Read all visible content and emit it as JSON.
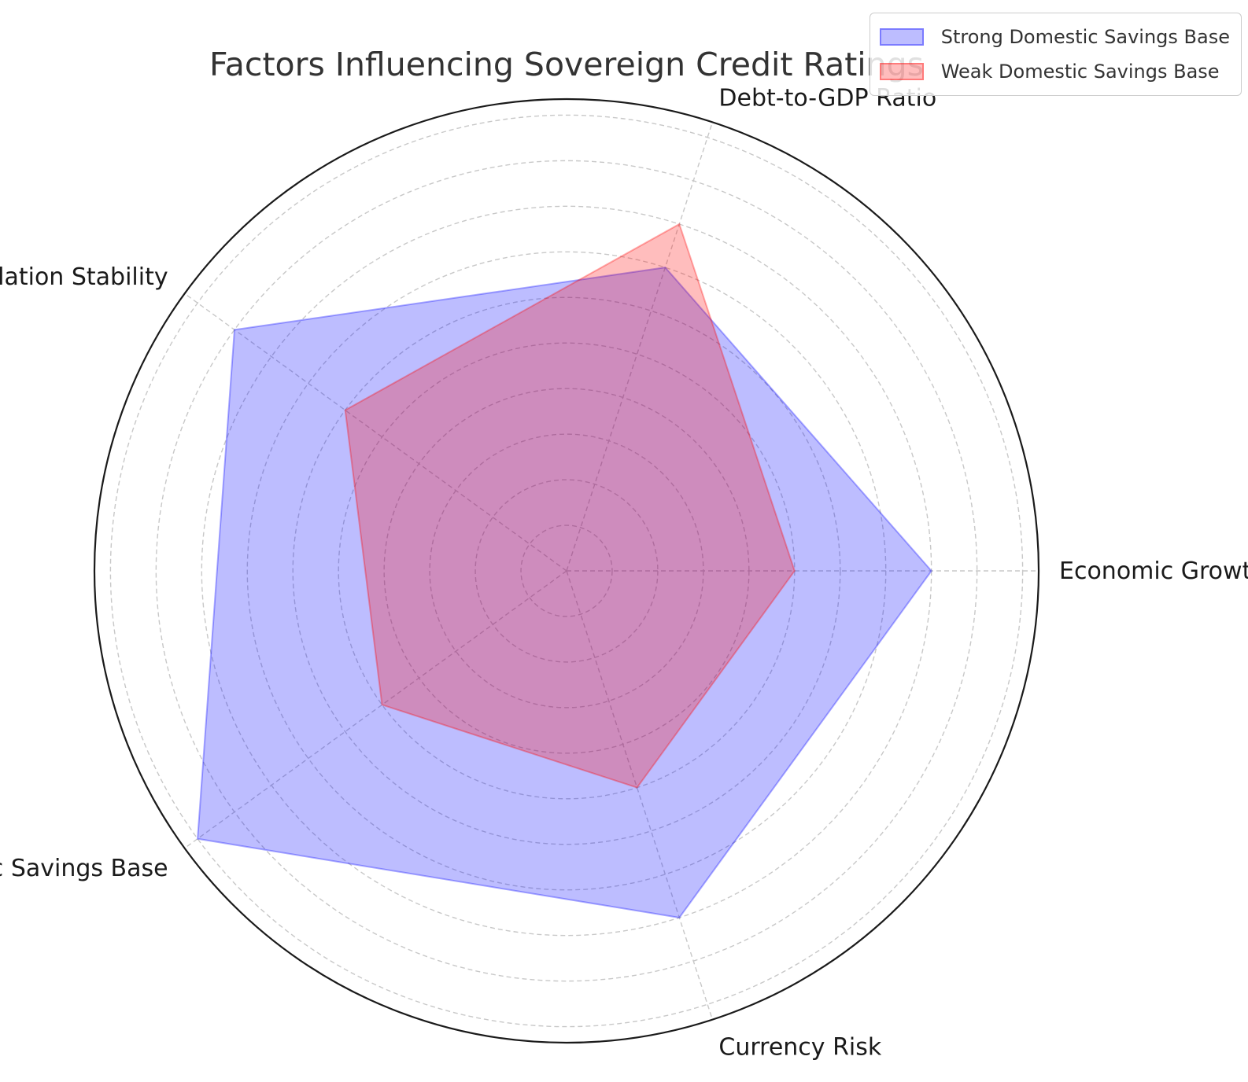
{
  "chart_data": {
    "type": "radar",
    "title": "Factors Influencing Sovereign Credit Ratings",
    "categories": [
      "Economic Growth",
      "Debt-to-GDP Ratio",
      "Inflation Stability",
      "Domestic Savings Base",
      "Currency Risk"
    ],
    "rlim": [
      0,
      10
    ],
    "ring_count": 10,
    "tick_labels_shown": false,
    "grid": true,
    "legend_position": "top-right",
    "series": [
      {
        "name": "Strong Domestic Savings Base",
        "values": [
          8,
          7,
          9,
          10,
          8
        ],
        "color": "#0000ff"
      },
      {
        "name": "Weak Domestic Savings Base",
        "values": [
          5,
          8,
          6,
          5,
          5
        ],
        "color": "#ff0000"
      }
    ]
  }
}
